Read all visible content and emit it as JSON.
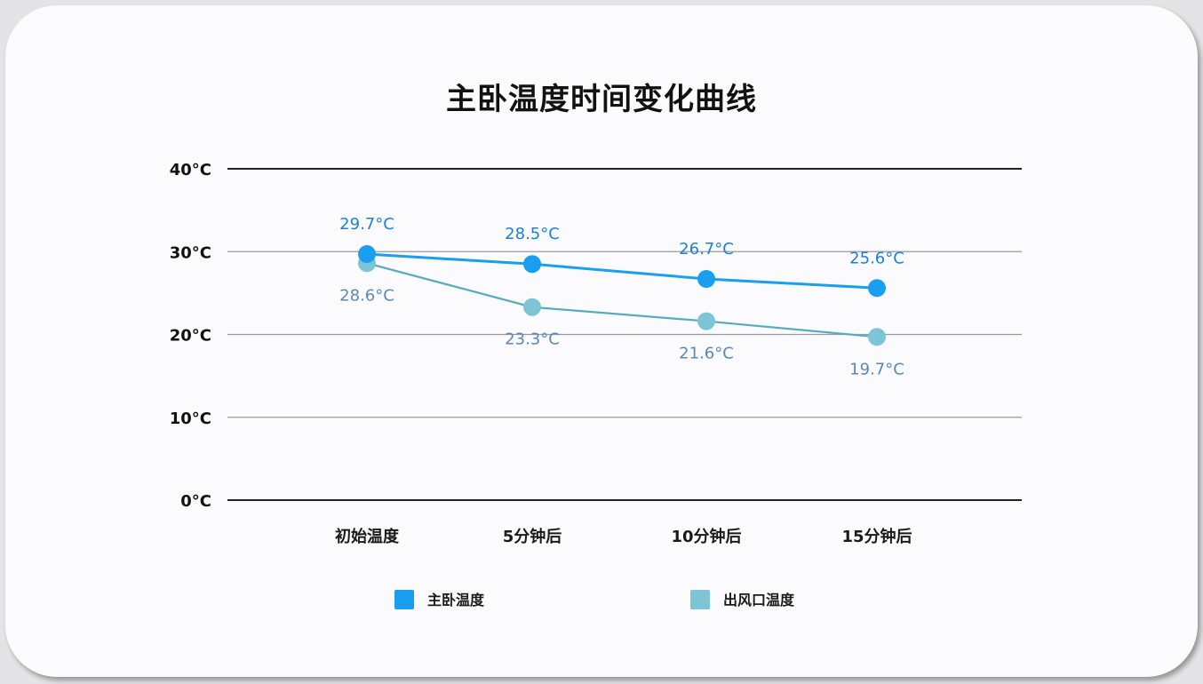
{
  "chart_data": {
    "type": "line",
    "title": "主卧温度时间变化曲线",
    "xlabel": "",
    "ylabel": "",
    "categories": [
      "初始温度",
      "5分钟后",
      "10分钟后",
      "15分钟后"
    ],
    "y_ticks": [
      "0°C",
      "10°C",
      "20°C",
      "30°C",
      "40°C"
    ],
    "ylim": [
      0,
      40
    ],
    "grid": true,
    "legend_position": "bottom",
    "series": [
      {
        "name": "主卧温度",
        "color": "#1a9ef0",
        "values": [
          29.7,
          28.5,
          26.7,
          25.6
        ],
        "labels": [
          "29.7°C",
          "28.5°C",
          "26.7°C",
          "25.6°C"
        ]
      },
      {
        "name": "出风口温度",
        "color": "#7cc4d6",
        "values": [
          28.6,
          23.3,
          21.6,
          19.7
        ],
        "labels": [
          "28.6°C",
          "23.3°C",
          "21.6°C",
          "19.7°C"
        ]
      }
    ]
  },
  "colors": {
    "series1": "#1a9ef0",
    "series1_label": "#1f7fd6",
    "series2": "#7cc4d6",
    "series2_line": "#5aaabf",
    "series2_label": "#5b88b8",
    "grid_major": "#222222",
    "grid_minor": "#9a9a9a"
  }
}
